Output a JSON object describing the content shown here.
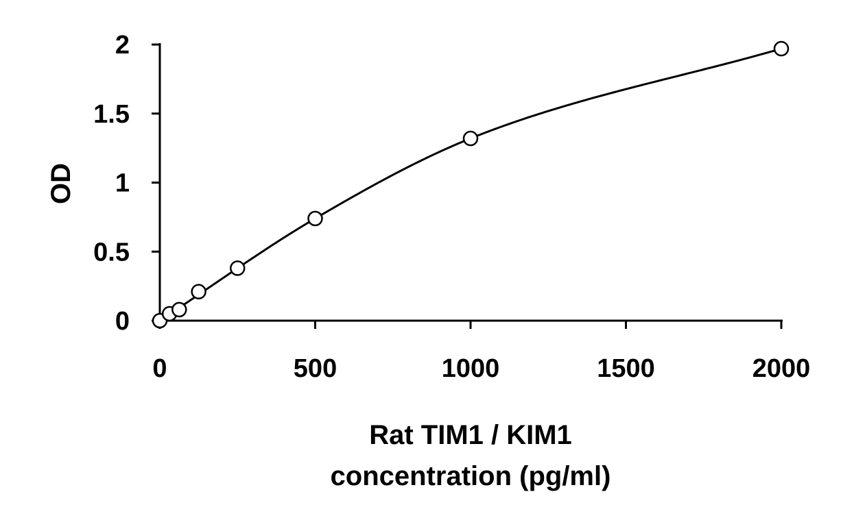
{
  "chart_data": {
    "type": "scatter",
    "title": "",
    "xlabel": "Rat TIM1 / KIM1 concentration (pg/ml)",
    "xlabel_lines": [
      "Rat TIM1 / KIM1",
      "concentration (pg/ml)"
    ],
    "ylabel": "OD",
    "xlim": [
      0,
      2000
    ],
    "ylim": [
      0,
      2
    ],
    "x_ticks": [
      0,
      500,
      1000,
      1500,
      2000
    ],
    "x_tick_labels": [
      "0",
      "500",
      "1000",
      "1500",
      "2000"
    ],
    "y_ticks": [
      0,
      0.5,
      1,
      1.5,
      2
    ],
    "y_tick_labels": [
      "0",
      "0.5",
      "1",
      "1.5",
      "2"
    ],
    "grid": false,
    "legend": "none",
    "series": [
      {
        "marker": "open-circle",
        "x": [
          0,
          31.25,
          62.5,
          125,
          250,
          500,
          1000,
          2000
        ],
        "y": [
          0.0,
          0.05,
          0.08,
          0.21,
          0.38,
          0.74,
          1.32,
          1.97
        ]
      }
    ],
    "fit_curve": {
      "kind": "smooth-fit",
      "x": [
        0,
        500,
        1000,
        2000
      ],
      "y": [
        0.0,
        0.74,
        1.32,
        1.97
      ]
    },
    "colors": {
      "axis": "#000000",
      "marker_stroke": "#000000",
      "marker_fill": "#ffffff",
      "curve": "#000000"
    }
  }
}
